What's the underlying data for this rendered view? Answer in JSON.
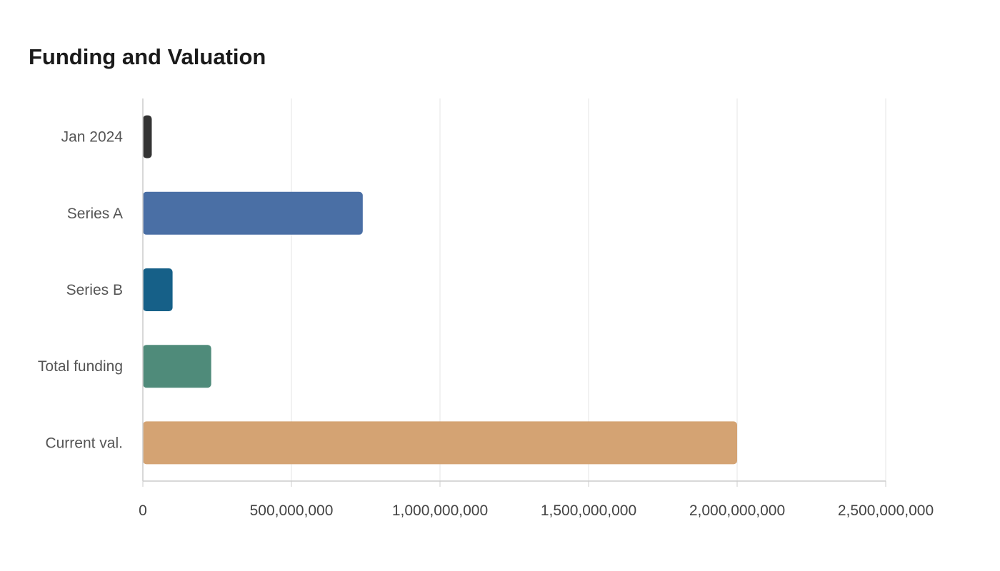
{
  "chart_data": {
    "type": "bar",
    "orientation": "horizontal",
    "title": "Funding and Valuation",
    "xlabel": "",
    "ylabel": "",
    "categories": [
      "Jan 2024",
      "Series A",
      "Series B",
      "Total funding",
      "Current val."
    ],
    "values": [
      30000000,
      740000000,
      100000000,
      230000000,
      2000000000
    ],
    "colors": [
      "#333333",
      "#4a6fa5",
      "#166088",
      "#4f8b7a",
      "#d4a373"
    ],
    "xlim": [
      0,
      2500000000
    ],
    "xticks": [
      0,
      500000000,
      1000000000,
      1500000000,
      2000000000,
      2500000000
    ],
    "xtick_labels": [
      "0",
      "500,000,000",
      "1,000,000,000",
      "1,500,000,000",
      "2,000,000,000",
      "2,500,000,000"
    ],
    "grid": true,
    "legend": "none"
  }
}
